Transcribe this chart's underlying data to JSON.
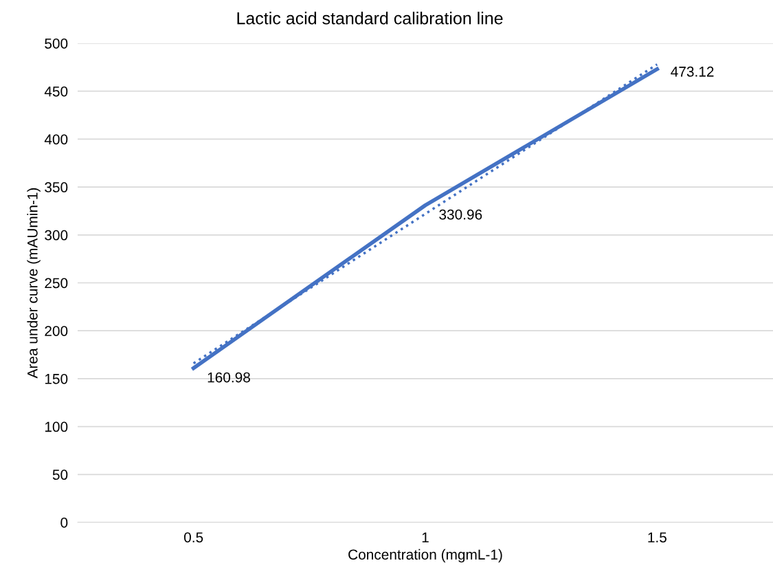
{
  "chart_data": {
    "type": "line",
    "title": "Lactic acid standard calibration line",
    "xlabel": "Concentration (mgmL-1)",
    "ylabel": "Area under curve (mAUmin-1)",
    "categories": [
      "0.5",
      "1",
      "1.5"
    ],
    "series": [
      {
        "color": "#4472c4",
        "values": [
          160.98,
          330.96,
          473.12
        ],
        "data_labels": true,
        "line_style": "solid"
      },
      {
        "color": "#4472c4",
        "values": [
          166,
          322,
          478
        ],
        "line_style": "dotted"
      }
    ],
    "ylim": [
      0,
      500
    ],
    "yticks": [
      0,
      50,
      100,
      150,
      200,
      250,
      300,
      350,
      400,
      450,
      500
    ],
    "grid": "y",
    "marker": "none"
  }
}
